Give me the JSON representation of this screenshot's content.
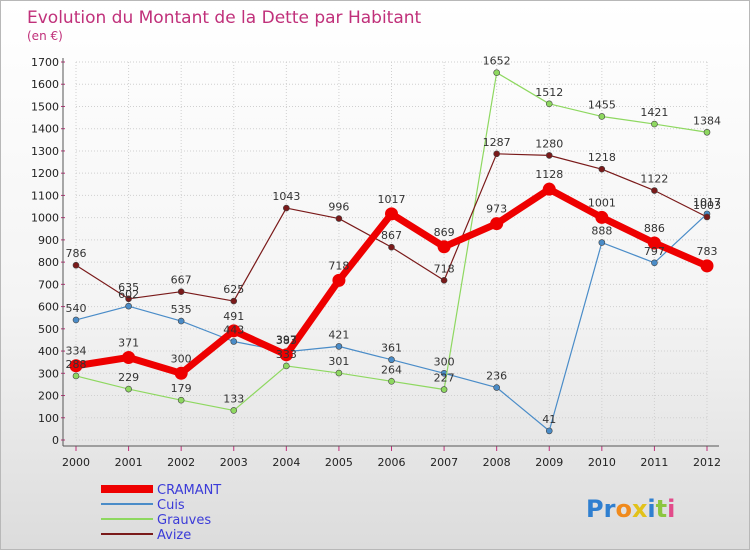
{
  "chart_data": {
    "type": "line",
    "title": "Evolution du Montant de la Dette par Habitant",
    "subtitle": "(en €)",
    "x": [
      "2000",
      "2001",
      "2002",
      "2003",
      "2004",
      "2005",
      "2006",
      "2007",
      "2008",
      "2009",
      "2010",
      "2011",
      "2012"
    ],
    "ylim": [
      0,
      1700
    ],
    "yticks": [
      0,
      100,
      200,
      300,
      400,
      500,
      600,
      700,
      800,
      900,
      1000,
      1100,
      1200,
      1300,
      1400,
      1500,
      1600,
      1700
    ],
    "grid": true,
    "legend_position": "bottom-left",
    "series": [
      {
        "name": "CRAMANT",
        "color": "#ee0000",
        "values": [
          334,
          371,
          300,
          491,
          383,
          718,
          1017,
          869,
          973,
          1128,
          1001,
          886,
          783
        ]
      },
      {
        "name": "Cuis",
        "color": "#4a8cc8",
        "values": [
          540,
          602,
          535,
          443,
          397,
          421,
          361,
          300,
          236,
          41,
          888,
          797,
          1017
        ]
      },
      {
        "name": "Grauves",
        "color": "#8ed860",
        "values": [
          288,
          229,
          179,
          133,
          333,
          301,
          264,
          227,
          1652,
          1512,
          1455,
          1421,
          1384
        ]
      },
      {
        "name": "Avize",
        "color": "#7a1a1a",
        "values": [
          786,
          635,
          667,
          625,
          1043,
          996,
          867,
          718,
          1287,
          1280,
          1218,
          1122,
          1003
        ]
      }
    ]
  },
  "logo": {
    "text": "Proxiti"
  }
}
